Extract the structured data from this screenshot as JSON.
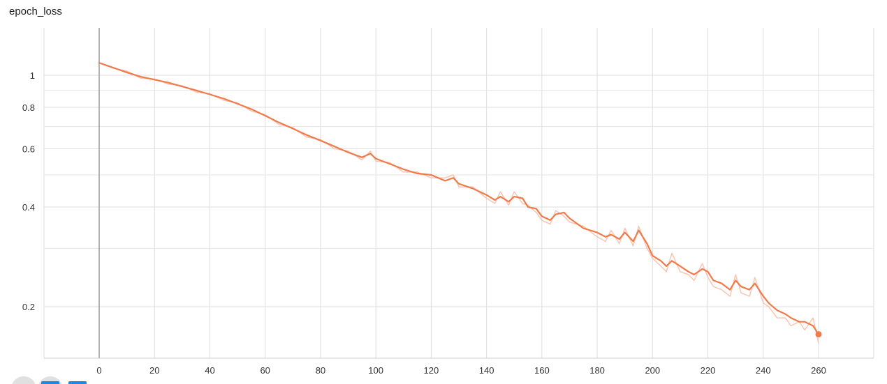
{
  "chart_data": {
    "type": "line",
    "title": "epoch_loss",
    "xlabel": "",
    "ylabel": "",
    "yscale": "log",
    "grid": true,
    "legend": "none",
    "xlim": [
      -20,
      273
    ],
    "ylim": [
      0.14,
      1.4
    ],
    "x_ticks": [
      0,
      20,
      40,
      60,
      80,
      100,
      120,
      140,
      160,
      180,
      200,
      220,
      240,
      260
    ],
    "x_tick_labels": [
      "0",
      "20",
      "40",
      "60",
      "80",
      "100",
      "120",
      "140",
      "160",
      "180",
      "200",
      "220",
      "240",
      "260"
    ],
    "y_ticks": [
      0.2,
      0.4,
      0.6,
      0.8,
      1.0
    ],
    "y_tick_labels": [
      "0.2",
      "0.4",
      "0.6",
      "0.8",
      "1"
    ],
    "y_minor_gridlines": [
      0.3,
      0.5,
      0.7,
      0.9
    ],
    "series": [
      {
        "name": "smoothed",
        "color": "#f07a4a",
        "x": [
          0,
          5,
          10,
          15,
          20,
          25,
          30,
          35,
          40,
          45,
          50,
          55,
          60,
          65,
          70,
          75,
          80,
          85,
          90,
          95,
          98,
          100,
          105,
          110,
          115,
          120,
          125,
          128,
          130,
          135,
          140,
          143,
          145,
          148,
          150,
          153,
          155,
          158,
          160,
          163,
          165,
          168,
          170,
          175,
          180,
          183,
          185,
          188,
          190,
          193,
          195,
          198,
          200,
          203,
          205,
          207,
          210,
          213,
          215,
          218,
          220,
          222,
          225,
          228,
          230,
          232,
          235,
          237,
          240,
          242,
          245,
          248,
          250,
          253,
          255,
          258,
          260
        ],
        "values": [
          1.09,
          1.055,
          1.02,
          0.99,
          0.97,
          0.95,
          0.925,
          0.9,
          0.875,
          0.85,
          0.82,
          0.79,
          0.755,
          0.72,
          0.69,
          0.66,
          0.635,
          0.61,
          0.585,
          0.565,
          0.58,
          0.56,
          0.54,
          0.52,
          0.505,
          0.5,
          0.48,
          0.49,
          0.47,
          0.455,
          0.435,
          0.42,
          0.43,
          0.415,
          0.43,
          0.425,
          0.4,
          0.395,
          0.375,
          0.365,
          0.38,
          0.385,
          0.37,
          0.345,
          0.335,
          0.325,
          0.33,
          0.32,
          0.335,
          0.315,
          0.34,
          0.31,
          0.285,
          0.275,
          0.265,
          0.275,
          0.265,
          0.255,
          0.25,
          0.26,
          0.255,
          0.24,
          0.235,
          0.225,
          0.24,
          0.23,
          0.225,
          0.235,
          0.215,
          0.205,
          0.195,
          0.19,
          0.185,
          0.18,
          0.18,
          0.175,
          0.165
        ]
      },
      {
        "name": "raw",
        "color": "#f9c5b3",
        "x": [
          0,
          5,
          10,
          15,
          20,
          25,
          30,
          35,
          40,
          45,
          50,
          55,
          60,
          65,
          70,
          75,
          80,
          85,
          90,
          95,
          98,
          100,
          105,
          110,
          115,
          120,
          125,
          128,
          130,
          135,
          140,
          143,
          145,
          148,
          150,
          153,
          155,
          158,
          160,
          163,
          165,
          168,
          170,
          175,
          180,
          183,
          185,
          188,
          190,
          193,
          195,
          198,
          200,
          203,
          205,
          207,
          210,
          213,
          215,
          218,
          220,
          222,
          225,
          228,
          230,
          232,
          235,
          237,
          240,
          242,
          245,
          248,
          250,
          253,
          255,
          258,
          260
        ],
        "values": [
          1.09,
          1.05,
          1.03,
          0.98,
          0.975,
          0.94,
          0.93,
          0.89,
          0.88,
          0.84,
          0.825,
          0.78,
          0.76,
          0.71,
          0.695,
          0.65,
          0.64,
          0.6,
          0.59,
          0.555,
          0.59,
          0.55,
          0.545,
          0.51,
          0.51,
          0.49,
          0.49,
          0.5,
          0.46,
          0.46,
          0.425,
          0.41,
          0.445,
          0.405,
          0.445,
          0.41,
          0.405,
          0.385,
          0.365,
          0.355,
          0.39,
          0.375,
          0.36,
          0.35,
          0.325,
          0.315,
          0.34,
          0.31,
          0.345,
          0.305,
          0.35,
          0.3,
          0.28,
          0.265,
          0.255,
          0.29,
          0.255,
          0.25,
          0.24,
          0.27,
          0.245,
          0.23,
          0.225,
          0.215,
          0.25,
          0.22,
          0.215,
          0.245,
          0.205,
          0.2,
          0.185,
          0.185,
          0.175,
          0.18,
          0.17,
          0.185,
          0.155
        ]
      }
    ]
  }
}
